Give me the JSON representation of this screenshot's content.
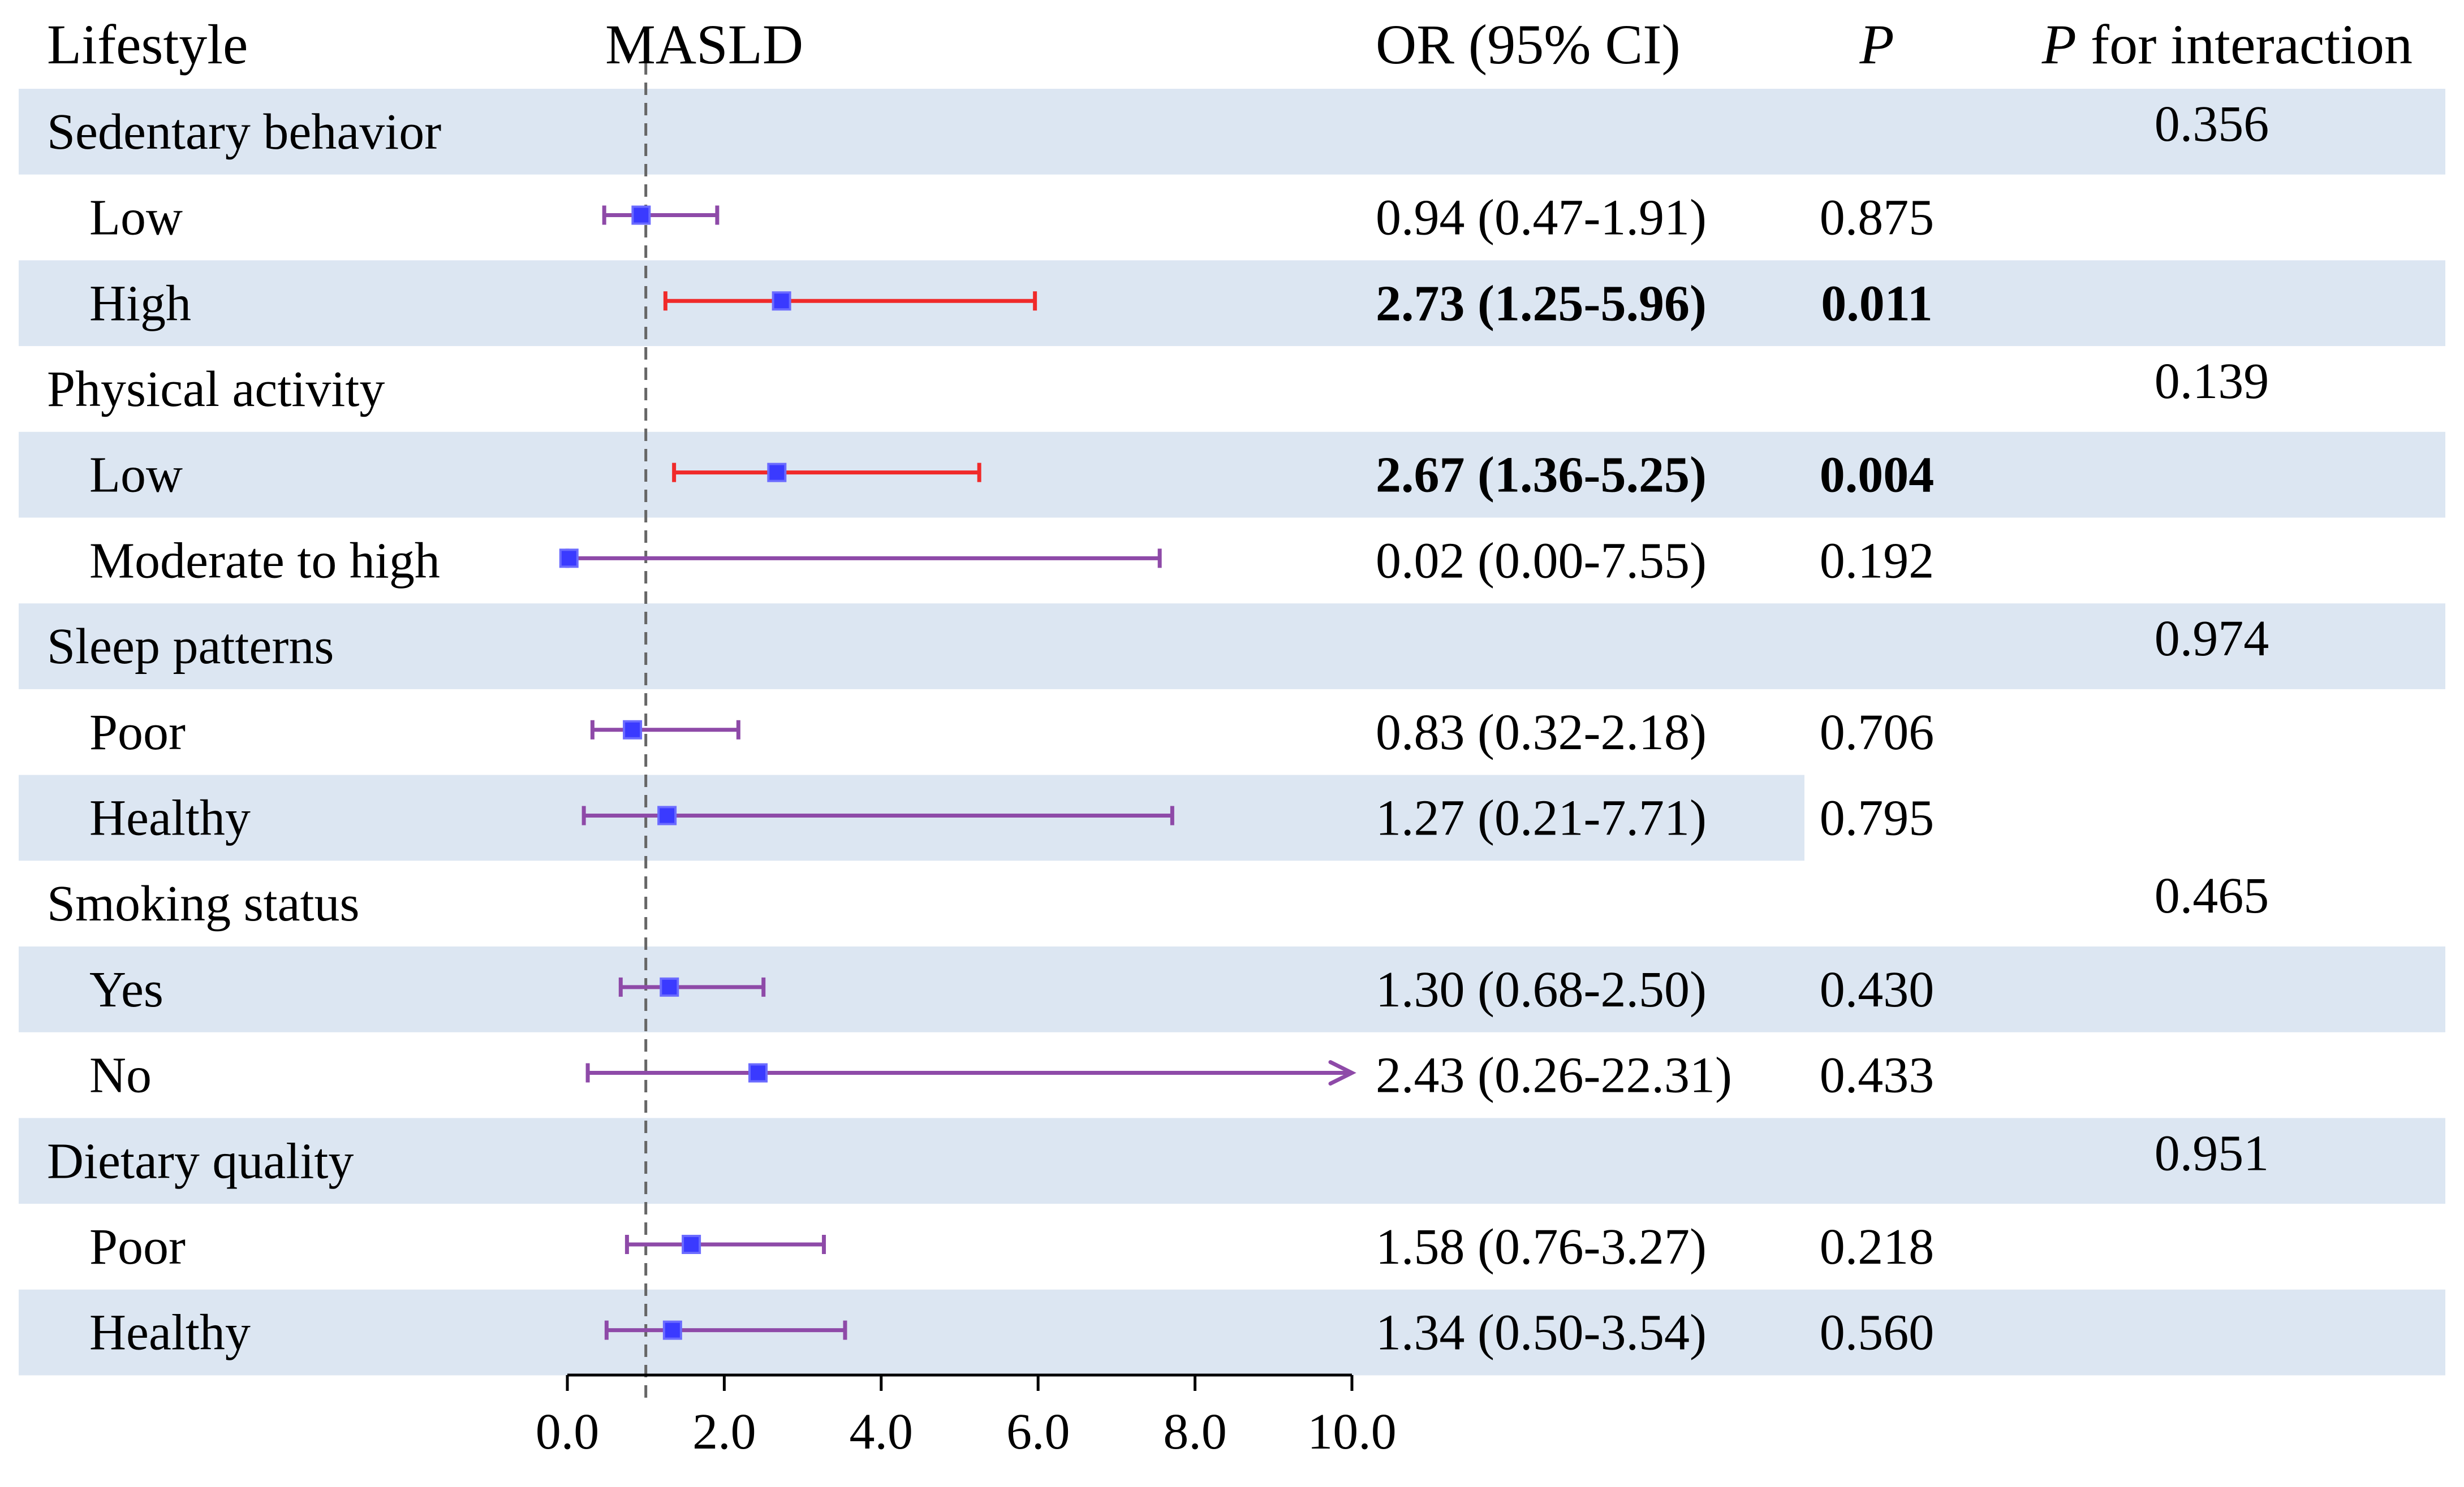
{
  "chart_data": {
    "type": "forest",
    "headers": {
      "lifestyle": "Lifestyle",
      "outcome": "MASLD",
      "or_ci": "OR (95% CI)",
      "p": "P",
      "p_interaction_italic": "P",
      "p_interaction_rest": " for interaction"
    },
    "xaxis": {
      "min": 0,
      "max": 10,
      "ticks": [
        "0.0",
        "2.0",
        "4.0",
        "6.0",
        "8.0",
        "10.0"
      ],
      "reference_line": 1.0
    },
    "colors": {
      "band": "#dce6f2",
      "significant_ci": "#f02a2a",
      "nonsignificant_ci": "#8e4aa8",
      "point": "#3a3aff",
      "reference": "#666666"
    },
    "groups": [
      {
        "label": "Sedentary behavior",
        "p_interaction": "0.356",
        "rows": [
          {
            "label": "Low",
            "or": 0.94,
            "lower": 0.47,
            "upper": 1.91,
            "or_ci_text": "0.94 (0.47-1.91)",
            "p": "0.875",
            "significant": false
          },
          {
            "label": "High",
            "or": 2.73,
            "lower": 1.25,
            "upper": 5.96,
            "or_ci_text": "2.73 (1.25-5.96)",
            "p": "0.011",
            "significant": true
          }
        ]
      },
      {
        "label": "Physical activity",
        "p_interaction": "0.139",
        "rows": [
          {
            "label": "Low",
            "or": 2.67,
            "lower": 1.36,
            "upper": 5.25,
            "or_ci_text": "2.67 (1.36-5.25)",
            "p": "0.004",
            "significant": true
          },
          {
            "label": "Moderate to high",
            "or": 0.02,
            "lower": 0.0,
            "upper": 7.55,
            "or_ci_text": "0.02 (0.00-7.55)",
            "p": "0.192",
            "significant": false
          }
        ]
      },
      {
        "label": "Sleep patterns",
        "p_interaction": "0.974",
        "rows": [
          {
            "label": "Poor",
            "or": 0.83,
            "lower": 0.32,
            "upper": 2.18,
            "or_ci_text": "0.83 (0.32-2.18)",
            "p": "0.706",
            "significant": false
          },
          {
            "label": "Healthy",
            "or": 1.27,
            "lower": 0.21,
            "upper": 7.71,
            "or_ci_text": "1.27 (0.21-7.71)",
            "p": "0.795",
            "significant": false
          }
        ]
      },
      {
        "label": "Smoking status",
        "p_interaction": "0.465",
        "rows": [
          {
            "label": "Yes",
            "or": 1.3,
            "lower": 0.68,
            "upper": 2.5,
            "or_ci_text": "1.30 (0.68-2.50)",
            "p": "0.430",
            "significant": false
          },
          {
            "label": "No",
            "or": 2.43,
            "lower": 0.26,
            "upper": 22.31,
            "or_ci_text": "2.43 (0.26-22.31)",
            "p": "0.433",
            "significant": false
          }
        ]
      },
      {
        "label": "Dietary quality",
        "p_interaction": "0.951",
        "rows": [
          {
            "label": "Poor",
            "or": 1.58,
            "lower": 0.76,
            "upper": 3.27,
            "or_ci_text": "1.58 (0.76-3.27)",
            "p": "0.218",
            "significant": false
          },
          {
            "label": "Healthy",
            "or": 1.34,
            "lower": 0.5,
            "upper": 3.54,
            "or_ci_text": "1.34 (0.50-3.54)",
            "p": "0.560",
            "significant": false
          }
        ]
      }
    ]
  }
}
